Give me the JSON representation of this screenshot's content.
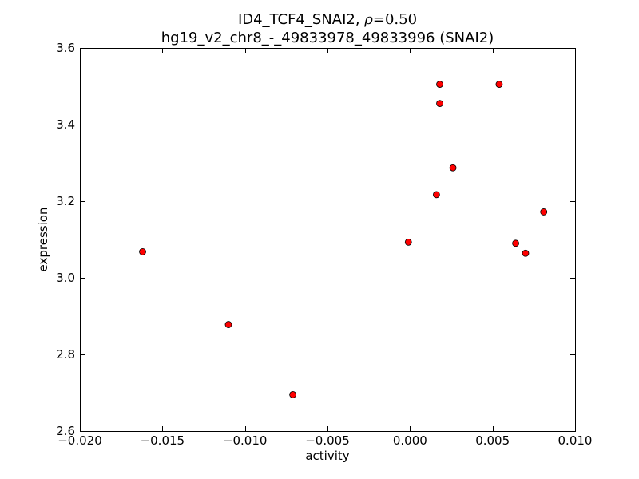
{
  "chart_data": {
    "type": "scatter",
    "title_line1_prefix": "ID4_TCF4_SNAI2, ",
    "title_rho_symbol": "ρ",
    "title_rho_value": "=0.50",
    "title_line2": "hg19_v2_chr8_-_49833978_49833996 (SNAI2)",
    "xlabel": "activity",
    "ylabel": "expression",
    "xlim": [
      -0.02,
      0.01
    ],
    "ylim": [
      2.6,
      3.6
    ],
    "xticks": [
      -0.02,
      -0.015,
      -0.01,
      -0.005,
      0.0,
      0.005,
      0.01
    ],
    "xtick_labels": [
      "−0.020",
      "−0.015",
      "−0.010",
      "−0.005",
      "0.000",
      "0.005",
      "0.010"
    ],
    "yticks": [
      2.6,
      2.8,
      3.0,
      3.2,
      3.4,
      3.6
    ],
    "ytick_labels": [
      "2.6",
      "2.8",
      "3.0",
      "3.2",
      "3.4",
      "3.6"
    ],
    "grid": false,
    "marker_color": "#ff0000",
    "marker_edge_color": "#000000",
    "points": [
      {
        "x": -0.0162,
        "y": 3.068
      },
      {
        "x": -0.011,
        "y": 2.878
      },
      {
        "x": -0.0071,
        "y": 2.695
      },
      {
        "x": -0.0001,
        "y": 3.093
      },
      {
        "x": 0.0016,
        "y": 3.217
      },
      {
        "x": 0.0018,
        "y": 3.505
      },
      {
        "x": 0.0018,
        "y": 3.455
      },
      {
        "x": 0.0026,
        "y": 3.287
      },
      {
        "x": 0.0054,
        "y": 3.505
      },
      {
        "x": 0.0064,
        "y": 3.09
      },
      {
        "x": 0.007,
        "y": 3.064
      },
      {
        "x": 0.0081,
        "y": 3.172
      }
    ]
  }
}
